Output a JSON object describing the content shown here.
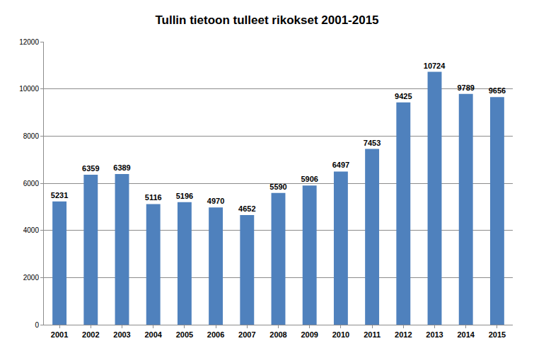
{
  "chart_data": {
    "type": "bar",
    "title": "Tullin tietoon tulleet rikokset 2001-2015",
    "categories": [
      "2001",
      "2002",
      "2003",
      "2004",
      "2005",
      "2006",
      "2007",
      "2008",
      "2009",
      "2010",
      "2011",
      "2012",
      "2013",
      "2014",
      "2015"
    ],
    "values": [
      5231,
      6359,
      6389,
      5116,
      5196,
      4970,
      4652,
      5590,
      5906,
      6497,
      7453,
      9425,
      10724,
      9789,
      9656
    ],
    "color": "#4f81bd",
    "ylim": [
      0,
      12000
    ],
    "yticks": [
      0,
      2000,
      4000,
      6000,
      8000,
      10000,
      12000
    ],
    "grid": true,
    "data_labels": true
  }
}
